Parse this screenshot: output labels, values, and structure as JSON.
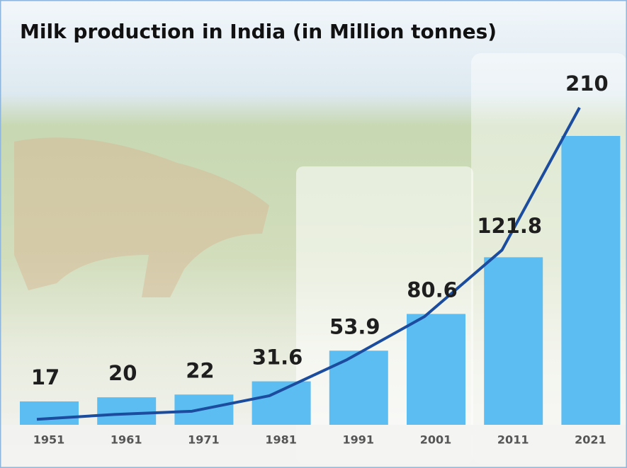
{
  "chart_data": {
    "type": "bar",
    "title": "Milk production in India (in Million tonnes)",
    "categories": [
      "1951",
      "1961",
      "1971",
      "1981",
      "1991",
      "2001",
      "2011",
      "2021"
    ],
    "values": [
      17,
      20,
      22,
      31.6,
      53.9,
      80.6,
      121.8,
      210
    ],
    "color": "#5cbdf3",
    "line_color": "#1b4c9e"
  }
}
